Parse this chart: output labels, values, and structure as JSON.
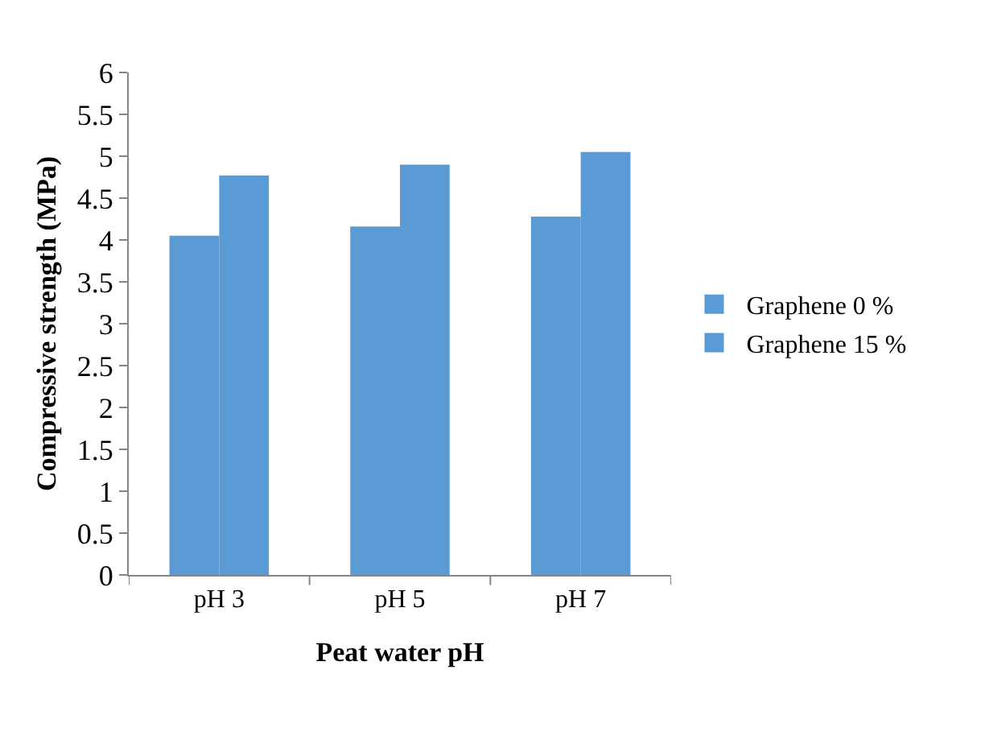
{
  "chart_data": {
    "type": "bar",
    "xlabel": "Peat water pH",
    "ylabel": "Compressive strength (MPa)",
    "categories": [
      "pH 3",
      "pH 5",
      "pH 7"
    ],
    "series": [
      {
        "name": "Graphene 0 %",
        "color": "#5b9bd5",
        "values": [
          4.05,
          4.16,
          4.28
        ]
      },
      {
        "name": "Graphene 15 %",
        "color": "#5b9bd5",
        "values": [
          4.77,
          4.9,
          5.05
        ]
      }
    ],
    "ylim": [
      0,
      6
    ],
    "yticks": [
      0,
      0.5,
      1,
      1.5,
      2,
      2.5,
      3,
      3.5,
      4,
      4.5,
      5,
      5.5,
      6
    ],
    "grid": false,
    "legend": "right"
  }
}
